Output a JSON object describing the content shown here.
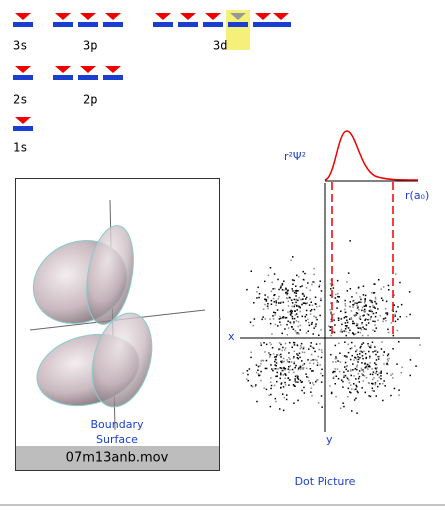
{
  "levels": {
    "labels": [
      "3s",
      "3p",
      "3d",
      "2s",
      "2p",
      "1s"
    ]
  },
  "movie": {
    "caption": "Boundary",
    "caption2": "Surface",
    "filename": "07m13anb.mov"
  },
  "dot_picture": {
    "y_axis_label": "r²Ψ²",
    "x_axis_label": "r(a₀)",
    "x_label": "x",
    "y_label": "y",
    "title": "Dot Picture"
  }
}
